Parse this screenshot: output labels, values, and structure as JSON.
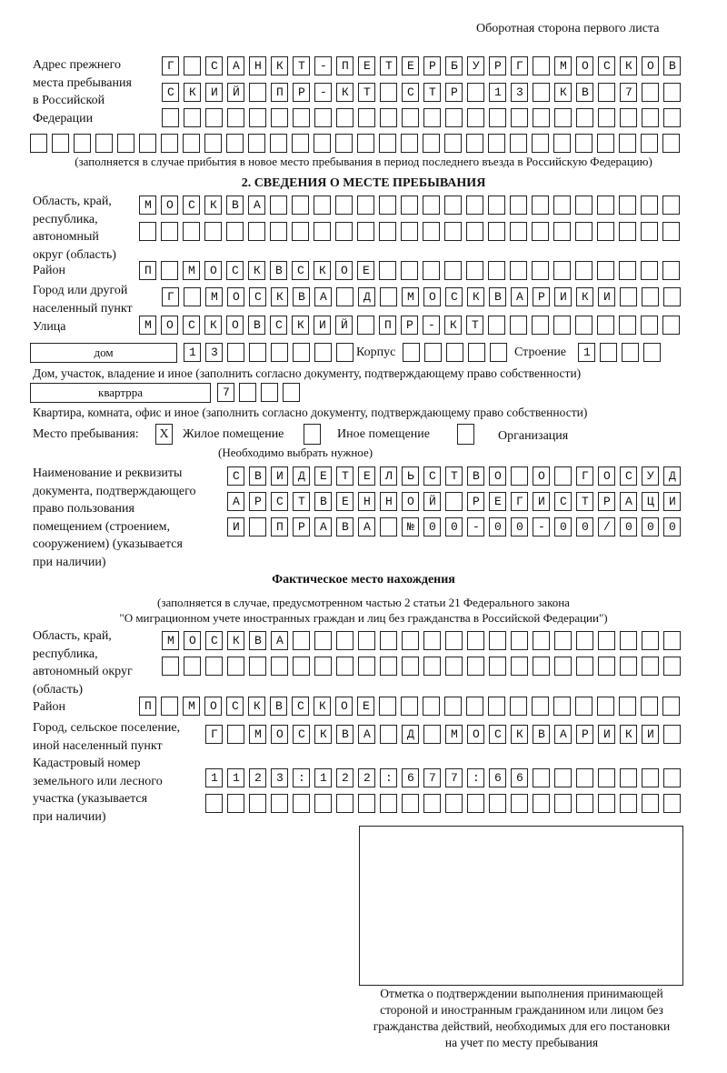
{
  "header": "Оборотная сторона первого листа",
  "prev_address": {
    "label": [
      "Адрес прежнего",
      "места пребывания",
      "в Российской",
      "Федерации"
    ],
    "rows": [
      "Г САНКТ-ПЕТЕРБУРГ МОСКОВ",
      "СКИЙ ПР-КТ СТР 13 КВ 7",
      "",
      ""
    ],
    "note": "(заполняется в случае прибытия в новое место пребывания в период последнего въезда в Российскую Федерацию)"
  },
  "section2": {
    "title": "2. СВЕДЕНИЯ О МЕСТЕ ПРЕБЫВАНИЯ",
    "region_label": [
      "Область, край,",
      "республика,",
      "автономный",
      "округ (область)"
    ],
    "region_rows": [
      "МОСКВА",
      ""
    ],
    "district_label": "Район",
    "district": "П МОСКВСКОЕ",
    "town_label": [
      "Город или другой",
      "населенный пункт"
    ],
    "town": "Г МОСКВА Д МОСКВАРИКИ",
    "street_label": "Улица",
    "street": "МОСКОВСКИЙ ПР-КТ",
    "house_type": "дом",
    "house_number": "13",
    "korpus_label": "Корпус",
    "korpus": "",
    "stroenie_label": "Строение",
    "stroenie": "1",
    "house_note": "Дом, участок, владение и иное (заполнить согласно документу, подтверждающему право собственности)",
    "apt_type": "квартрра",
    "apt_number": "7",
    "apt_note": "Квартира, комната, офис и иное (заполнить согласно документу, подтверждающему право собственности)",
    "place_label": "Место пребывания:",
    "place_options": [
      {
        "label": "Жилое помещение",
        "mark": "X"
      },
      {
        "label": "Иное помещение",
        "mark": ""
      },
      {
        "label": "Организация",
        "mark": ""
      }
    ],
    "place_note": "(Необходимо выбрать нужное)",
    "doc_label": [
      "Наименование и реквизиты",
      "документа, подтверждающего",
      "право пользования",
      "помещением (строением,",
      "сооружением) (указывается",
      "при наличии)"
    ],
    "doc_rows": [
      "СВИДЕТЕЛЬСТВО О ГОСУД",
      "АРСТВЕННОЙ РЕГИСТРАЦИ",
      "И ПРАВА №00-00-00/000"
    ]
  },
  "actual": {
    "title": "Фактическое место нахождения",
    "note": [
      "(заполняется в случае, предусмотренном частью 2 статьи 21 Федерального закона",
      "\"О миграционном учете иностранных граждан и лиц без гражданства в Российской Федерации\")"
    ],
    "region_label": [
      "Область, край,",
      "республика,",
      "автономный округ",
      "(область)"
    ],
    "region_rows": [
      "МОСКВА",
      ""
    ],
    "district_label": "Район",
    "district": "П МОСКВСКОЕ",
    "town_label": [
      "Город, сельское поселение,",
      "иной населенный пункт"
    ],
    "town": "Г МОСКВА Д МОСКВАРИКИ",
    "cadastre_label": [
      "Кадастровый номер",
      "земельного или лесного",
      "участка (указывается",
      "при наличии)"
    ],
    "cadastre_rows": [
      "1123:122:677:66",
      ""
    ]
  },
  "stamp": {
    "caption": [
      "Отметка о подтверждении выполнения принимающей",
      "стороной и иностранным гражданином или лицом без",
      "гражданства действий, необходимых для его постановки",
      "на учет по месту пребывания"
    ]
  }
}
